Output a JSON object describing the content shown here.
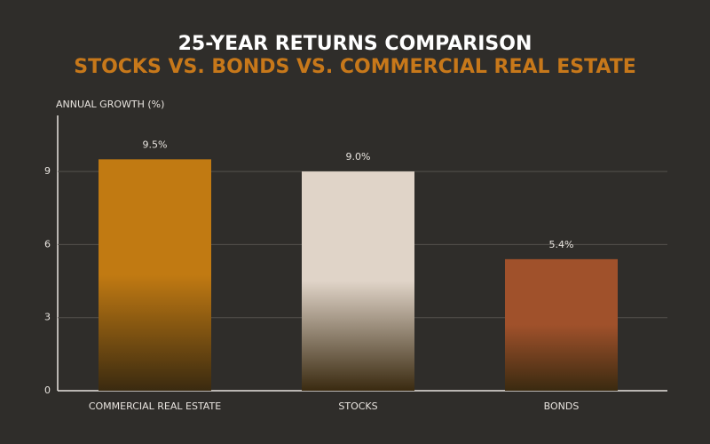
{
  "chart_data": {
    "type": "bar",
    "title": "25-YEAR RETURNS COMPARISON",
    "subtitle": "STOCKS VS. BONDS VS. COMMERCIAL REAL ESTATE",
    "y_label": "ANNUAL GROWTH (%)",
    "categories": [
      "COMMERCIAL REAL ESTATE",
      "STOCKS",
      "BONDS"
    ],
    "values": [
      9.5,
      9.0,
      5.4
    ],
    "value_labels": [
      "9.5%",
      "9.0%",
      "5.4%"
    ],
    "colors": [
      "#c17a12",
      "#e0d4c8",
      "#a0512b"
    ],
    "ylim": [
      0,
      11.3
    ],
    "yticks": [
      0,
      3,
      6,
      9
    ],
    "grid": true
  }
}
